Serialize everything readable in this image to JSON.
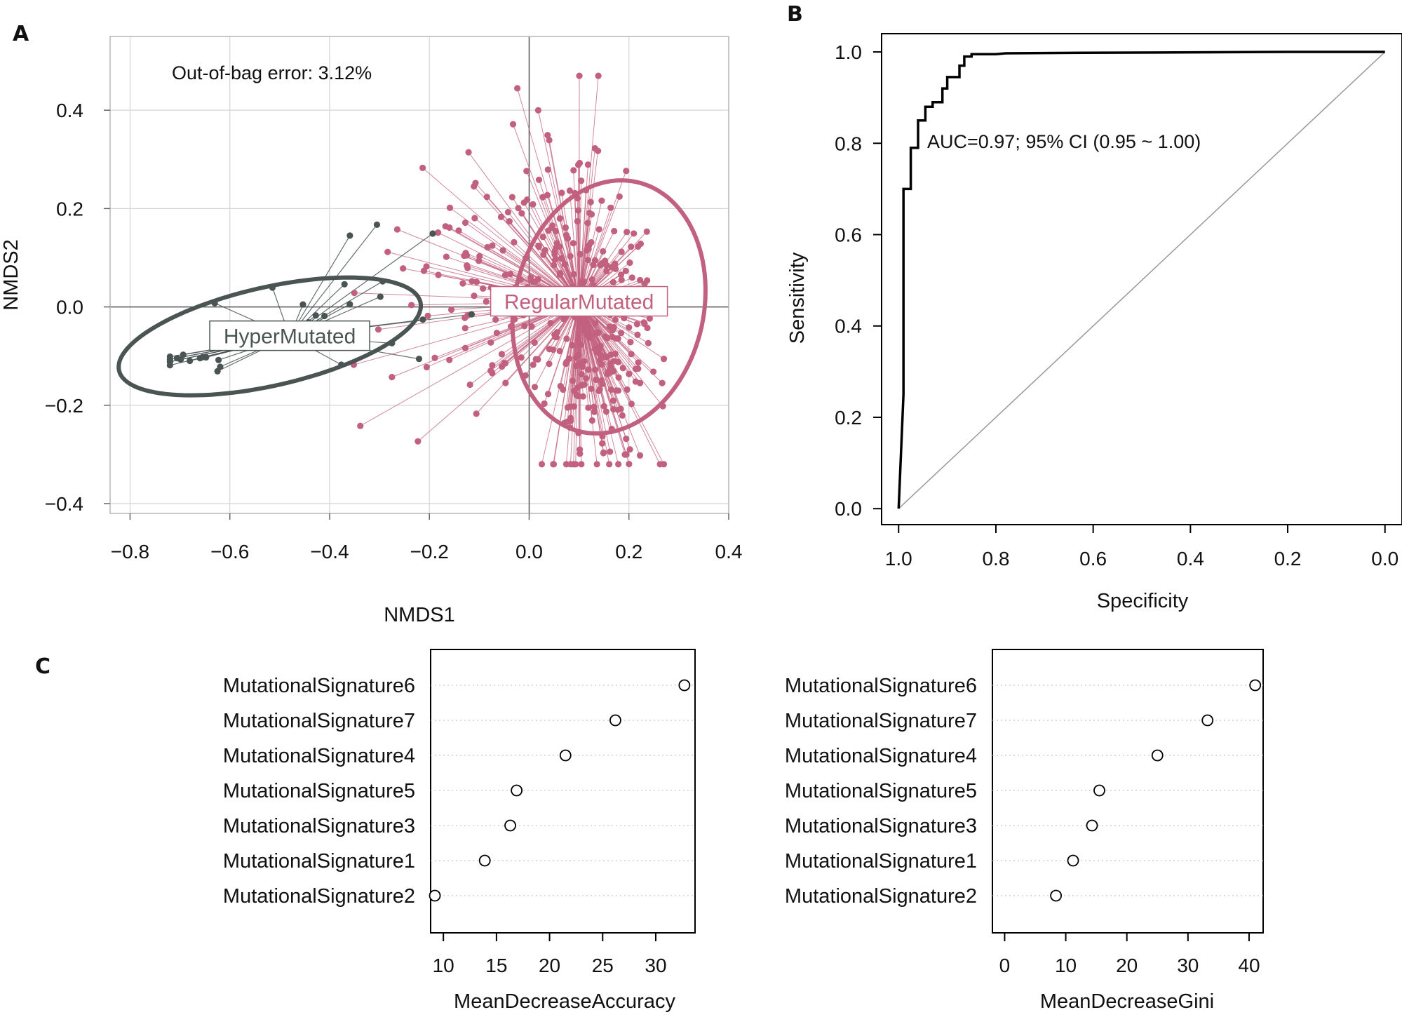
{
  "panels": {
    "a": "A",
    "b": "B",
    "c": "C"
  },
  "colors": {
    "hyper": "#4a5553",
    "regular": "#c2607f",
    "roc": "#000000",
    "grid": "#d4d4d4",
    "dotted": "#c8c8c8"
  },
  "chart_data": [
    {
      "type": "scatter",
      "panel": "A",
      "annotation": "Out-of-bag error: 3.12%",
      "xlabel": "NMDS1",
      "ylabel": "NMDS2",
      "xlim": [
        -0.84,
        0.4
      ],
      "ylim": [
        -0.42,
        0.55
      ],
      "x_ticks": [
        "−0.8",
        "−0.6",
        "−0.4",
        "−0.2",
        "0.0",
        "0.2",
        "0.4"
      ],
      "y_ticks": [
        "0.4",
        "0.2",
        "0.0",
        "−0.2",
        "−0.4"
      ],
      "grid": true,
      "series": [
        {
          "name": "HyperMutated",
          "centroid": [
            -0.48,
            -0.06
          ],
          "ellipse": {
            "cx": -0.52,
            "cy": -0.06,
            "a": 0.31,
            "b": 0.1,
            "angle_deg": 13
          },
          "count": 40
        },
        {
          "name": "RegularMutated",
          "centroid": [
            0.1,
            0.01
          ],
          "ellipse": {
            "cx": 0.16,
            "cy": 0.0,
            "a": 0.26,
            "b": 0.19,
            "angle_deg": 78
          },
          "count": 400
        }
      ]
    },
    {
      "type": "line",
      "panel": "B",
      "annotation": "AUC=0.97; 95% CI (0.95 ~ 1.00)",
      "xlabel": "Specificity",
      "ylabel": "Sensitivity",
      "x_reversed": true,
      "xlim": [
        1.035,
        -0.035
      ],
      "ylim": [
        -0.035,
        1.04
      ],
      "x_ticks": [
        "1.0",
        "0.8",
        "0.6",
        "0.4",
        "0.2",
        "0.0"
      ],
      "y_ticks": [
        "0.0",
        "0.2",
        "0.4",
        "0.6",
        "0.8",
        "1.0"
      ],
      "series": [
        {
          "name": "ROC",
          "points": [
            [
              1.0,
              0.0
            ],
            [
              0.99,
              0.25
            ],
            [
              0.99,
              0.7
            ],
            [
              0.975,
              0.7
            ],
            [
              0.975,
              0.79
            ],
            [
              0.96,
              0.79
            ],
            [
              0.96,
              0.85
            ],
            [
              0.945,
              0.85
            ],
            [
              0.945,
              0.88
            ],
            [
              0.93,
              0.88
            ],
            [
              0.93,
              0.89
            ],
            [
              0.91,
              0.89
            ],
            [
              0.91,
              0.92
            ],
            [
              0.9,
              0.92
            ],
            [
              0.9,
              0.945
            ],
            [
              0.875,
              0.945
            ],
            [
              0.875,
              0.97
            ],
            [
              0.865,
              0.97
            ],
            [
              0.865,
              0.99
            ],
            [
              0.85,
              0.99
            ],
            [
              0.85,
              0.995
            ],
            [
              0.8,
              0.995
            ],
            [
              0.78,
              0.997
            ],
            [
              0.62,
              0.998
            ],
            [
              0.2,
              1.0
            ],
            [
              0.0,
              1.0
            ]
          ]
        },
        {
          "name": "chance",
          "points": [
            [
              1.0,
              0.0
            ],
            [
              0.0,
              1.0
            ]
          ]
        }
      ]
    },
    {
      "type": "scatter",
      "panel": "C1",
      "xlabel": "MeanDecreaseAccuracy",
      "xlim": [
        8.8,
        33.7
      ],
      "x_ticks": [
        10,
        15,
        20,
        25,
        30
      ],
      "categories": [
        "MutationalSignature6",
        "MutationalSignature7",
        "MutationalSignature4",
        "MutationalSignature5",
        "MutationalSignature3",
        "MutationalSignature1",
        "MutationalSignature2"
      ],
      "values": [
        32.7,
        26.2,
        21.5,
        16.9,
        16.3,
        13.9,
        9.2
      ]
    },
    {
      "type": "scatter",
      "panel": "C2",
      "xlabel": "MeanDecreaseGini",
      "xlim": [
        -2,
        42.3
      ],
      "x_ticks": [
        0,
        10,
        20,
        30,
        40
      ],
      "categories": [
        "MutationalSignature6",
        "MutationalSignature7",
        "MutationalSignature4",
        "MutationalSignature5",
        "MutationalSignature3",
        "MutationalSignature1",
        "MutationalSignature2"
      ],
      "values": [
        41.0,
        33.2,
        25.0,
        15.5,
        14.3,
        11.2,
        8.4
      ]
    }
  ]
}
